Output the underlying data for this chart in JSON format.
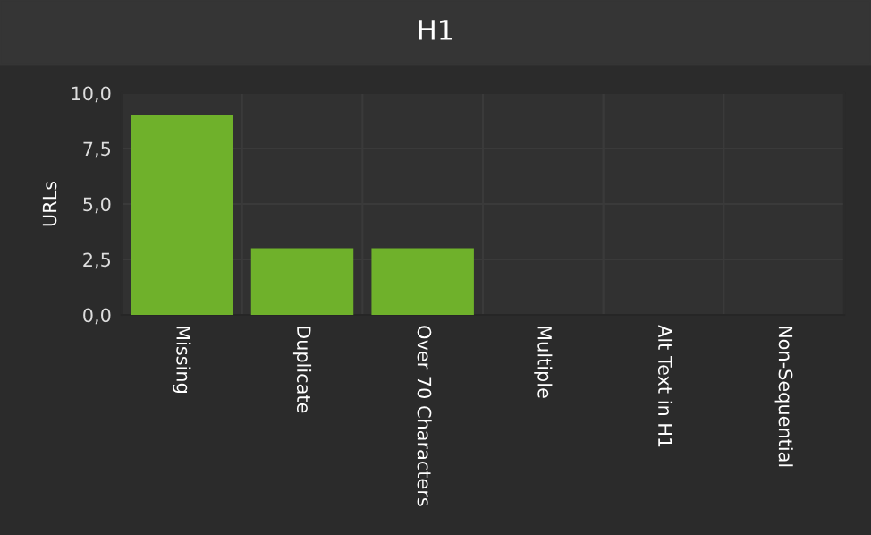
{
  "chart_data": {
    "type": "bar",
    "title": "H1",
    "ylabel": "URLs",
    "categories": [
      "Missing",
      "Duplicate",
      "Over 70 Characters",
      "Multiple",
      "Alt Text in H1",
      "Non-Sequential"
    ],
    "values": [
      9,
      3,
      3,
      0,
      0,
      0
    ],
    "color": "#6fb12b",
    "ylim": [
      0,
      10
    ],
    "yticks": [
      {
        "value": 0,
        "label": "0,0"
      },
      {
        "value": 2.5,
        "label": "2,5"
      },
      {
        "value": 5,
        "label": "5,0"
      },
      {
        "value": 7.5,
        "label": "7,5"
      },
      {
        "value": 10,
        "label": "10,0"
      }
    ],
    "grid": true,
    "legend": false
  }
}
